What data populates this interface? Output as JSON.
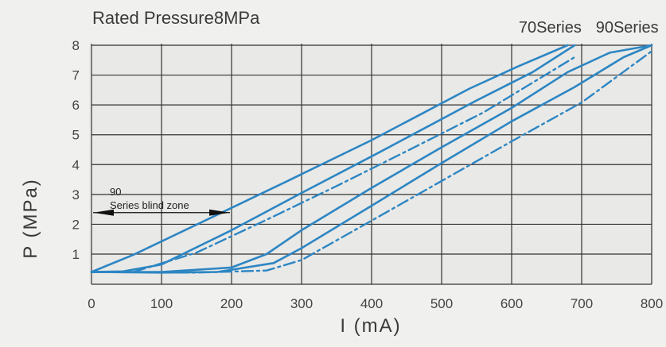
{
  "chart_data": {
    "type": "line",
    "title": "Rated Pressure8MPa",
    "xlabel": "I (mA)",
    "ylabel": "P (MPa)",
    "xlim": [
      0,
      800
    ],
    "ylim": [
      0.3,
      8
    ],
    "x_ticks": [
      0,
      100,
      200,
      300,
      400,
      500,
      600,
      700,
      800
    ],
    "y_ticks": [
      1,
      2,
      3,
      4,
      5,
      6,
      7,
      8
    ],
    "grid": true,
    "colors": {
      "curve": "#2d86c3",
      "grid": "#333333",
      "plot_bg": "#e9e9e7",
      "page_bg": "#f0f0ef"
    },
    "series_labels": [
      {
        "text": "70Series",
        "anchor_x": 655,
        "anchor_y": 8.12
      },
      {
        "text": "90Series",
        "anchor_x": 765,
        "anchor_y": 8.12
      }
    ],
    "annotation": {
      "lines": [
        "90",
        "Series blind zone"
      ],
      "arrow_from_x": 0,
      "arrow_to_x": 200,
      "arrow_y": 2.55
    },
    "series": [
      {
        "group": "70Series",
        "style": "solid",
        "x": [
          0,
          60,
          160,
          280,
          400,
          540,
          610,
          680
        ],
        "y": [
          0.4,
          0.98,
          2.1,
          3.45,
          4.82,
          6.55,
          7.3,
          8.0
        ]
      },
      {
        "group": "70Series",
        "style": "solid",
        "x": [
          0,
          45,
          100,
          200,
          300,
          410,
          550,
          630,
          690
        ],
        "y": [
          0.4,
          0.42,
          0.65,
          1.8,
          3.05,
          4.4,
          6.15,
          7.1,
          8.0
        ]
      },
      {
        "group": "70Series",
        "style": "dashdot",
        "x": [
          0,
          60,
          150,
          250,
          350,
          450,
          560,
          690
        ],
        "y": [
          0.4,
          0.4,
          1.05,
          2.15,
          3.28,
          4.45,
          5.75,
          7.6
        ]
      },
      {
        "group": "90Series",
        "style": "solid",
        "x": [
          0,
          100,
          200,
          250,
          300,
          400,
          500,
          600,
          680,
          740,
          800
        ],
        "y": [
          0.4,
          0.4,
          0.55,
          1.0,
          1.8,
          3.22,
          4.58,
          5.9,
          7.1,
          7.75,
          8.0
        ]
      },
      {
        "group": "90Series",
        "style": "solid",
        "x": [
          0,
          100,
          180,
          260,
          300,
          400,
          500,
          600,
          690,
          760,
          800
        ],
        "y": [
          0.4,
          0.38,
          0.4,
          0.7,
          1.2,
          2.62,
          4.05,
          5.45,
          6.6,
          7.6,
          8.0
        ]
      },
      {
        "group": "90Series",
        "style": "dashdot",
        "x": [
          0,
          150,
          250,
          300,
          400,
          500,
          600,
          700,
          800
        ],
        "y": [
          0.4,
          0.38,
          0.45,
          0.8,
          2.12,
          3.45,
          4.78,
          6.08,
          7.8
        ]
      }
    ]
  }
}
